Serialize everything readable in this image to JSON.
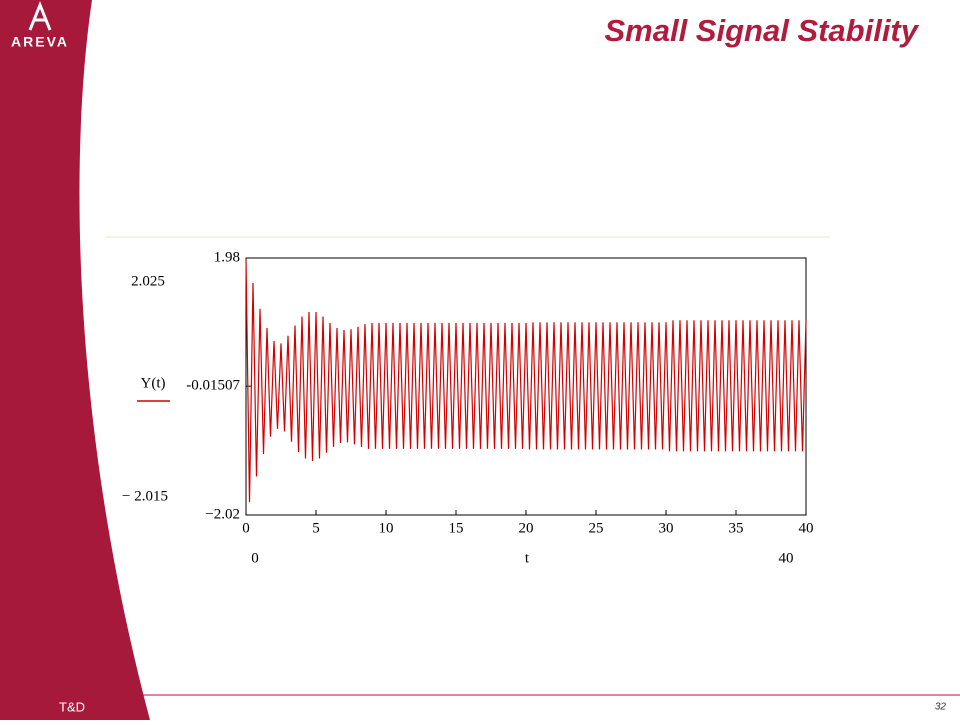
{
  "slide": {
    "logo": "AREVA",
    "title": "Small Signal Stability",
    "footer": "T&D",
    "page_number": "32"
  },
  "chart_data": {
    "type": "line",
    "y_label": "Y(t)",
    "x_label": "t",
    "y_axis_limits": [
      "2.025",
      "− 2.015"
    ],
    "x_axis_limits": [
      "0",
      "40"
    ],
    "color": "#d40000",
    "xlim": [
      0,
      40
    ],
    "xticks": [
      0,
      5,
      10,
      15,
      20,
      25,
      30,
      35,
      40
    ],
    "ylim": [
      -2.02,
      1.98
    ],
    "yticks": [
      1.98,
      -0.01507,
      {
        "value": -2.02,
        "label": "−2.02"
      }
    ],
    "x": [
      0,
      0.25,
      0.5,
      0.75,
      1,
      1.25,
      1.5,
      1.75,
      2,
      2.25,
      2.5,
      2.75,
      3,
      3.25,
      3.5,
      3.75,
      4,
      4.25,
      4.5,
      4.75,
      5,
      5.25,
      5.5,
      5.75,
      6,
      6.25,
      6.5,
      6.75,
      7,
      7.25,
      7.5,
      7.75,
      8,
      8.25,
      8.5,
      8.75,
      9,
      9.25,
      9.5,
      9.75,
      10,
      10.25,
      10.5,
      10.75,
      11,
      11.25,
      11.5,
      11.75,
      12,
      12.25,
      12.5,
      12.75,
      13,
      13.25,
      13.5,
      13.75,
      14,
      14.25,
      14.5,
      14.75,
      15,
      15.25,
      15.5,
      15.75,
      16,
      16.25,
      16.5,
      16.75,
      17,
      17.25,
      17.5,
      17.75,
      18,
      18.25,
      18.5,
      18.75,
      19,
      19.25,
      19.5,
      19.75,
      20,
      20.25,
      20.5,
      20.75,
      21,
      21.25,
      21.5,
      21.75,
      22,
      22.25,
      22.5,
      22.75,
      23,
      23.25,
      23.5,
      23.75,
      24,
      24.25,
      24.5,
      24.75,
      25,
      25.25,
      25.5,
      25.75,
      26,
      26.25,
      26.5,
      26.75,
      27,
      27.25,
      27.5,
      27.75,
      28,
      28.25,
      28.5,
      28.75,
      29,
      29.25,
      29.5,
      29.75,
      30,
      30.25,
      30.5,
      30.75,
      31,
      31.25,
      31.5,
      31.75,
      32,
      32.25,
      32.5,
      32.75,
      33,
      33.25,
      33.5,
      33.75,
      34,
      34.25,
      34.5,
      34.75,
      35,
      35.25,
      35.5,
      35.75,
      36,
      36.25,
      36.5,
      36.75,
      37,
      37.25,
      37.5,
      37.75,
      38,
      38.25,
      38.5,
      38.75,
      39,
      39.25,
      39.5,
      39.75,
      40
    ],
    "values": [
      1.97,
      -1.82,
      1.59,
      -1.42,
      1.19,
      -1.07,
      0.89,
      -0.8,
      0.69,
      -0.68,
      0.65,
      -0.72,
      0.77,
      -0.88,
      0.93,
      -1.04,
      1.07,
      -1.14,
      1.14,
      -1.18,
      1.14,
      -1.14,
      1.07,
      -1.05,
      0.97,
      -0.96,
      0.89,
      -0.9,
      0.86,
      -0.89,
      0.87,
      -0.92,
      0.91,
      -0.96,
      0.95,
      -0.99,
      0.97,
      -0.99,
      0.97,
      -0.99,
      0.97,
      -0.99,
      0.97,
      -0.99,
      0.97,
      -0.99,
      0.97,
      -0.99,
      0.97,
      -0.99,
      0.97,
      -0.99,
      0.97,
      -0.99,
      0.97,
      -0.99,
      0.97,
      -0.99,
      0.97,
      -0.99,
      0.97,
      -0.99,
      0.97,
      -0.99,
      0.97,
      -0.99,
      0.97,
      -0.99,
      0.97,
      -0.99,
      0.97,
      -0.99,
      0.97,
      -0.99,
      0.97,
      -0.99,
      0.97,
      -0.99,
      0.97,
      -0.99,
      0.97,
      -1.0,
      0.98,
      -1.0,
      0.98,
      -1.0,
      0.98,
      -1.0,
      0.98,
      -1.0,
      0.98,
      -1.0,
      0.98,
      -1.0,
      0.98,
      -1.0,
      0.98,
      -1.0,
      0.98,
      -1.0,
      0.98,
      -1.0,
      0.98,
      -1.0,
      0.98,
      -1.0,
      0.98,
      -1.0,
      0.98,
      -1.0,
      0.98,
      -1.0,
      0.98,
      -1.0,
      0.98,
      -1.0,
      0.98,
      -1.0,
      0.98,
      -1.0,
      0.98,
      -1.03,
      1.01,
      -1.03,
      1.01,
      -1.03,
      1.01,
      -1.03,
      1.01,
      -1.03,
      1.01,
      -1.03,
      1.01,
      -1.03,
      1.01,
      -1.03,
      1.01,
      -1.03,
      1.01,
      -1.03,
      1.01,
      -1.03,
      1.01,
      -1.03,
      1.01,
      -1.03,
      1.01,
      -1.03,
      1.01,
      -1.03,
      1.01,
      -1.03,
      1.01,
      -1.03,
      1.01,
      -1.03,
      1.01,
      -1.03,
      1.01,
      -1.03,
      1.01
    ]
  }
}
